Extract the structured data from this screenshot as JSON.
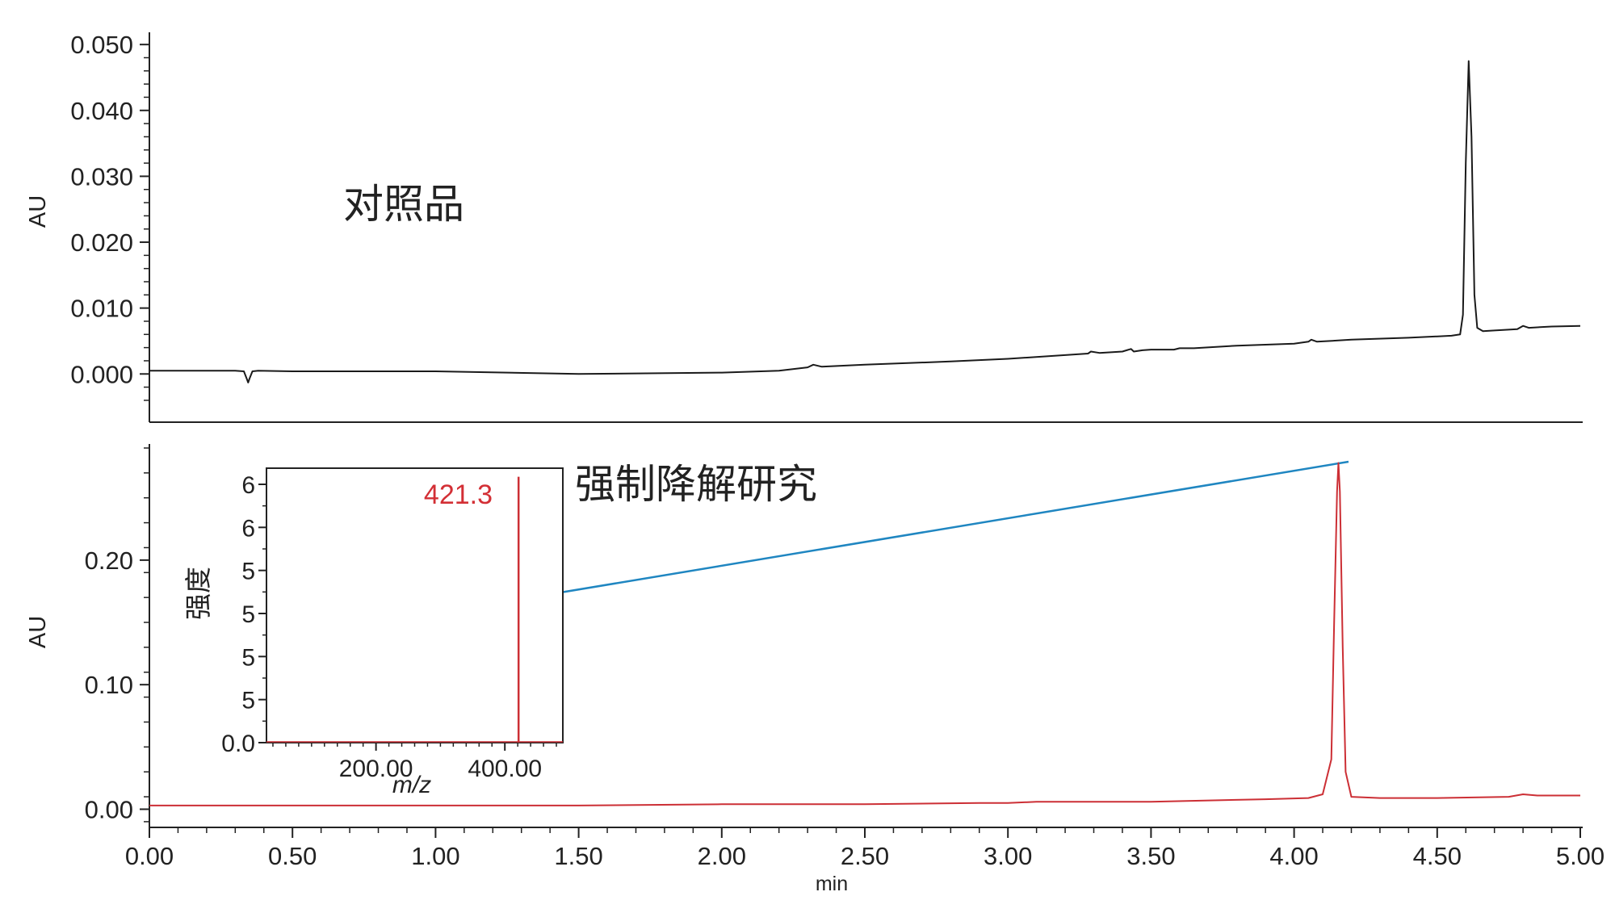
{
  "chart_data": [
    {
      "type": "line",
      "title": "",
      "annotation": "对照品",
      "xlabel": "",
      "ylabel": "AU",
      "xlim": [
        0.0,
        5.0
      ],
      "ylim": [
        -0.0045,
        0.051
      ],
      "yticks": [
        "0.000",
        "0.010",
        "0.020",
        "0.030",
        "0.040",
        "0.050"
      ],
      "xticks": [
        "0.00",
        "0.50",
        "1.00",
        "1.50",
        "2.00",
        "2.50",
        "3.00",
        "3.50",
        "4.00",
        "4.50",
        "5.00"
      ],
      "grid": false,
      "color": "#1a1a1a",
      "series": [
        {
          "x": [
            0.0,
            0.3,
            0.33,
            0.34,
            0.345,
            0.35,
            0.36,
            0.38,
            0.5,
            1.0,
            1.5,
            2.0,
            2.2,
            2.3,
            2.32,
            2.35,
            2.5,
            2.8,
            3.0,
            3.28,
            3.29,
            3.32,
            3.4,
            3.43,
            3.44,
            3.47,
            3.5,
            3.58,
            3.6,
            3.65,
            3.8,
            4.0,
            4.05,
            4.06,
            4.08,
            4.2,
            4.4,
            4.55,
            4.58,
            4.59,
            4.6,
            4.61,
            4.62,
            4.63,
            4.64,
            4.66,
            4.7,
            4.78,
            4.8,
            4.82,
            4.9,
            5.0
          ],
          "y": [
            0.0005,
            0.0005,
            0.0004,
            -0.0007,
            -0.0013,
            -0.0007,
            0.0004,
            0.0005,
            0.0004,
            0.0004,
            0.0,
            0.0002,
            0.0005,
            0.001,
            0.0014,
            0.0011,
            0.0014,
            0.0019,
            0.0023,
            0.0031,
            0.0034,
            0.0032,
            0.0034,
            0.0038,
            0.0034,
            0.0036,
            0.0037,
            0.0037,
            0.0039,
            0.0039,
            0.0043,
            0.0046,
            0.0049,
            0.0052,
            0.0049,
            0.0052,
            0.0055,
            0.0058,
            0.006,
            0.009,
            0.032,
            0.0475,
            0.036,
            0.012,
            0.007,
            0.0065,
            0.0066,
            0.0068,
            0.0073,
            0.007,
            0.0072,
            0.0073
          ]
        }
      ]
    },
    {
      "type": "line",
      "title": "",
      "annotation": "强制降解研究",
      "xlabel": "min",
      "ylabel": "AU",
      "xlim": [
        0.0,
        5.0
      ],
      "ylim": [
        -0.012,
        0.29
      ],
      "yticks": [
        "0.00",
        "0.10",
        "0.20"
      ],
      "xticks": [
        "0.00",
        "0.50",
        "1.00",
        "1.50",
        "2.00",
        "2.50",
        "3.00",
        "3.50",
        "4.00",
        "4.50",
        "5.00"
      ],
      "grid": false,
      "color": "#cc2f35",
      "series": [
        {
          "x": [
            0.0,
            0.35,
            1.0,
            1.5,
            2.0,
            2.5,
            2.9,
            3.0,
            3.1,
            3.5,
            3.9,
            4.05,
            4.1,
            4.13,
            4.14,
            4.15,
            4.155,
            4.16,
            4.17,
            4.18,
            4.2,
            4.3,
            4.5,
            4.75,
            4.8,
            4.85,
            5.0
          ],
          "y": [
            0.003,
            0.003,
            0.003,
            0.003,
            0.004,
            0.004,
            0.005,
            0.005,
            0.006,
            0.006,
            0.008,
            0.009,
            0.012,
            0.04,
            0.15,
            0.255,
            0.278,
            0.255,
            0.13,
            0.03,
            0.01,
            0.009,
            0.009,
            0.01,
            0.012,
            0.011,
            0.011
          ]
        }
      ]
    },
    {
      "type": "bar",
      "title": "",
      "xlabel": "m/z",
      "ylabel": "强度",
      "xlim": [
        30,
        490
      ],
      "xticks": [
        "200.00",
        "400.00"
      ],
      "yticks": [
        "0.0",
        "5",
        "5",
        "5",
        "5",
        "6",
        "6"
      ],
      "ylim": [
        0,
        6.4
      ],
      "peak_label": "421.3",
      "color": "#cc2f35",
      "values": [
        {
          "x": 421.3,
          "y": 6.2
        }
      ]
    }
  ]
}
